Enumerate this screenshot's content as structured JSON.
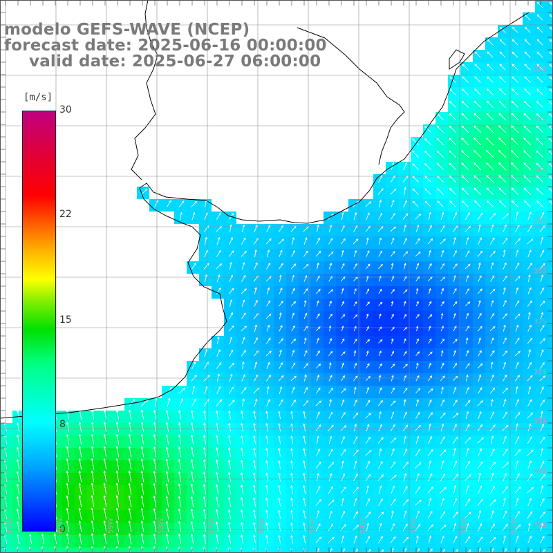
{
  "header": {
    "line1": "modelo GEFS-WAVE (NCEP)",
    "line2": "forecast date: 2025-06-16 00:00:00",
    "line3": "valid date: 2025-06-27 06:00:00"
  },
  "colorbar": {
    "unit": "[m/s]",
    "ticks": [
      "30",
      "22",
      "15",
      "8",
      "0"
    ],
    "tick_values": [
      30,
      22,
      15,
      8,
      0
    ],
    "min": 0,
    "max": 30,
    "colors": [
      "#0000ff",
      "#00b4ff",
      "#00ffff",
      "#00ff80",
      "#00e000",
      "#ffff00",
      "#ff0000",
      "#c00080"
    ]
  },
  "map": {
    "lat_labels": [
      "32S",
      "33S",
      "34S",
      "35S",
      "36S",
      "37S",
      "38S",
      "39S",
      "40S",
      "41S"
    ],
    "lon_labels": [
      "61W",
      "60W",
      "59W",
      "58W",
      "57W",
      "56W",
      "55W",
      "54W",
      "53W",
      "52W",
      "51W"
    ],
    "land_color": "#ffffff",
    "grid_color": "#8c8c8c"
  }
}
